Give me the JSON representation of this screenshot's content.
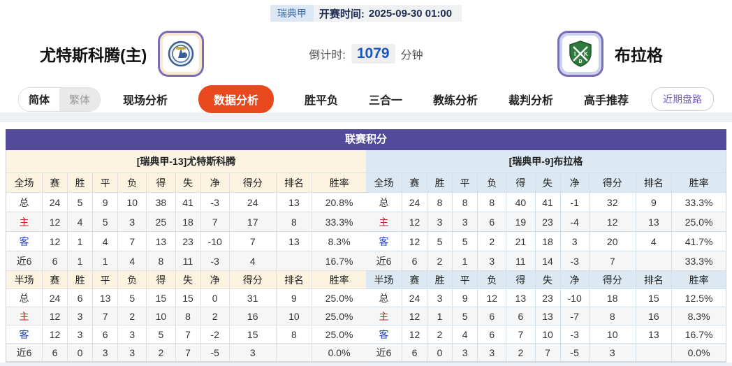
{
  "meta": {
    "league": "瑞典甲",
    "kickoff_label": "开赛时间:",
    "kickoff_time": "2025-09-30 01:00",
    "countdown_label": "倒计时:",
    "countdown_value": "1079",
    "countdown_unit": "分钟"
  },
  "teams": {
    "home": {
      "name": "尤特斯科腾(主)",
      "logo": "home-crest"
    },
    "away": {
      "name": "布拉格",
      "logo": "away-crest"
    }
  },
  "nav": {
    "lang_simplified": "简体",
    "lang_traditional": "繁体",
    "tabs": [
      {
        "label": "现场分析",
        "active": false
      },
      {
        "label": "数据分析",
        "active": true
      },
      {
        "label": "胜平负",
        "active": false
      },
      {
        "label": "三合一",
        "active": false
      },
      {
        "label": "教练分析",
        "active": false
      },
      {
        "label": "裁判分析",
        "active": false
      },
      {
        "label": "高手推荐",
        "active": false
      }
    ],
    "recent_button": "近期盘路"
  },
  "colors": {
    "accent_purple": "#534a9c",
    "active_tab_orange": "#e8481e",
    "home_header_cream": "#fcf3e1",
    "away_header_blue": "#dce9f2",
    "home_label_red": "#cc2222",
    "away_label_blue": "#2244bb"
  },
  "section": {
    "title": "联赛积分",
    "home_header": "[瑞典甲-13]尤特斯科腾",
    "away_header": "[瑞典甲-9]布拉格",
    "columns_full": [
      "全场",
      "赛",
      "胜",
      "平",
      "负",
      "得",
      "失",
      "净",
      "得分",
      "排名",
      "胜率"
    ],
    "columns_half": [
      "半场",
      "赛",
      "胜",
      "平",
      "负",
      "得",
      "失",
      "净",
      "得分",
      "排名",
      "胜率"
    ],
    "home_full_rows": [
      [
        "总",
        "24",
        "5",
        "9",
        "10",
        "38",
        "41",
        "-3",
        "24",
        "13",
        "20.8%"
      ],
      [
        "主",
        "12",
        "4",
        "5",
        "3",
        "25",
        "18",
        "7",
        "17",
        "8",
        "33.3%"
      ],
      [
        "客",
        "12",
        "1",
        "4",
        "7",
        "13",
        "23",
        "-10",
        "7",
        "13",
        "8.3%"
      ],
      [
        "近6",
        "6",
        "1",
        "1",
        "4",
        "8",
        "11",
        "-3",
        "4",
        "",
        "16.7%"
      ]
    ],
    "home_half_rows": [
      [
        "总",
        "24",
        "6",
        "13",
        "5",
        "15",
        "15",
        "0",
        "31",
        "9",
        "25.0%"
      ],
      [
        "主",
        "12",
        "3",
        "7",
        "2",
        "10",
        "8",
        "2",
        "16",
        "10",
        "25.0%"
      ],
      [
        "客",
        "12",
        "3",
        "6",
        "3",
        "5",
        "7",
        "-2",
        "15",
        "8",
        "25.0%"
      ],
      [
        "近6",
        "6",
        "0",
        "3",
        "3",
        "2",
        "7",
        "-5",
        "3",
        "",
        "0.0%"
      ]
    ],
    "away_full_rows": [
      [
        "总",
        "24",
        "8",
        "8",
        "8",
        "40",
        "41",
        "-1",
        "32",
        "9",
        "33.3%"
      ],
      [
        "主",
        "12",
        "3",
        "3",
        "6",
        "19",
        "23",
        "-4",
        "12",
        "13",
        "25.0%"
      ],
      [
        "客",
        "12",
        "5",
        "5",
        "2",
        "21",
        "18",
        "3",
        "20",
        "4",
        "41.7%"
      ],
      [
        "近6",
        "6",
        "2",
        "1",
        "3",
        "11",
        "14",
        "-3",
        "7",
        "",
        "33.3%"
      ]
    ],
    "away_half_rows": [
      [
        "总",
        "24",
        "3",
        "9",
        "12",
        "13",
        "23",
        "-10",
        "18",
        "15",
        "12.5%"
      ],
      [
        "主",
        "12",
        "1",
        "5",
        "6",
        "6",
        "13",
        "-7",
        "8",
        "16",
        "8.3%"
      ],
      [
        "客",
        "12",
        "2",
        "4",
        "6",
        "7",
        "10",
        "-3",
        "10",
        "13",
        "16.7%"
      ],
      [
        "近6",
        "6",
        "0",
        "3",
        "3",
        "2",
        "7",
        "-5",
        "3",
        "",
        "0.0%"
      ]
    ]
  }
}
